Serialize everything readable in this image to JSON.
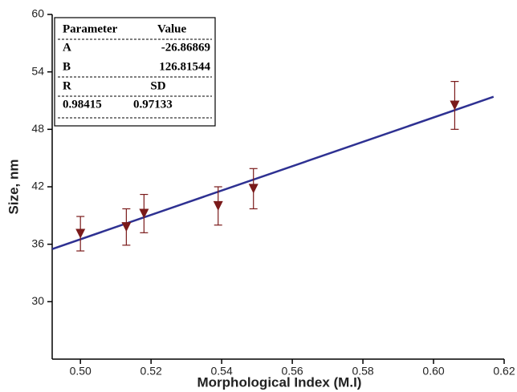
{
  "chart_data": {
    "type": "scatter",
    "x_label": "Morphological Index (M.I)",
    "y_label": "Size, nm",
    "x": [
      0.5,
      0.513,
      0.518,
      0.539,
      0.549,
      0.606
    ],
    "values": [
      37.1,
      37.8,
      39.2,
      40.0,
      41.8,
      50.5
    ],
    "errors": [
      1.8,
      1.9,
      2.0,
      2.0,
      2.1,
      2.5
    ],
    "color": "#7a1a1a",
    "fit_line": {
      "x": [
        0.492,
        0.617
      ],
      "values": [
        35.5,
        51.4
      ],
      "color": "#2e3192"
    },
    "xlim": [
      0.492,
      0.62
    ],
    "ylim": [
      24,
      60
    ],
    "xticks": [
      {
        "value": 0.5,
        "label": "0.50"
      },
      0.52,
      0.54,
      0.56,
      0.58,
      {
        "value": 0.6,
        "label": "0.60"
      },
      0.62
    ],
    "yticks": [
      30,
      36,
      42,
      48,
      54,
      60
    ],
    "table": {
      "header": [
        "Parameter",
        "Value"
      ],
      "rows": [
        [
          "A",
          "-26.86869"
        ],
        [
          "B",
          "126.81544"
        ],
        [
          "R",
          "SD"
        ],
        [
          "0.98415",
          "0.97133"
        ]
      ]
    }
  }
}
